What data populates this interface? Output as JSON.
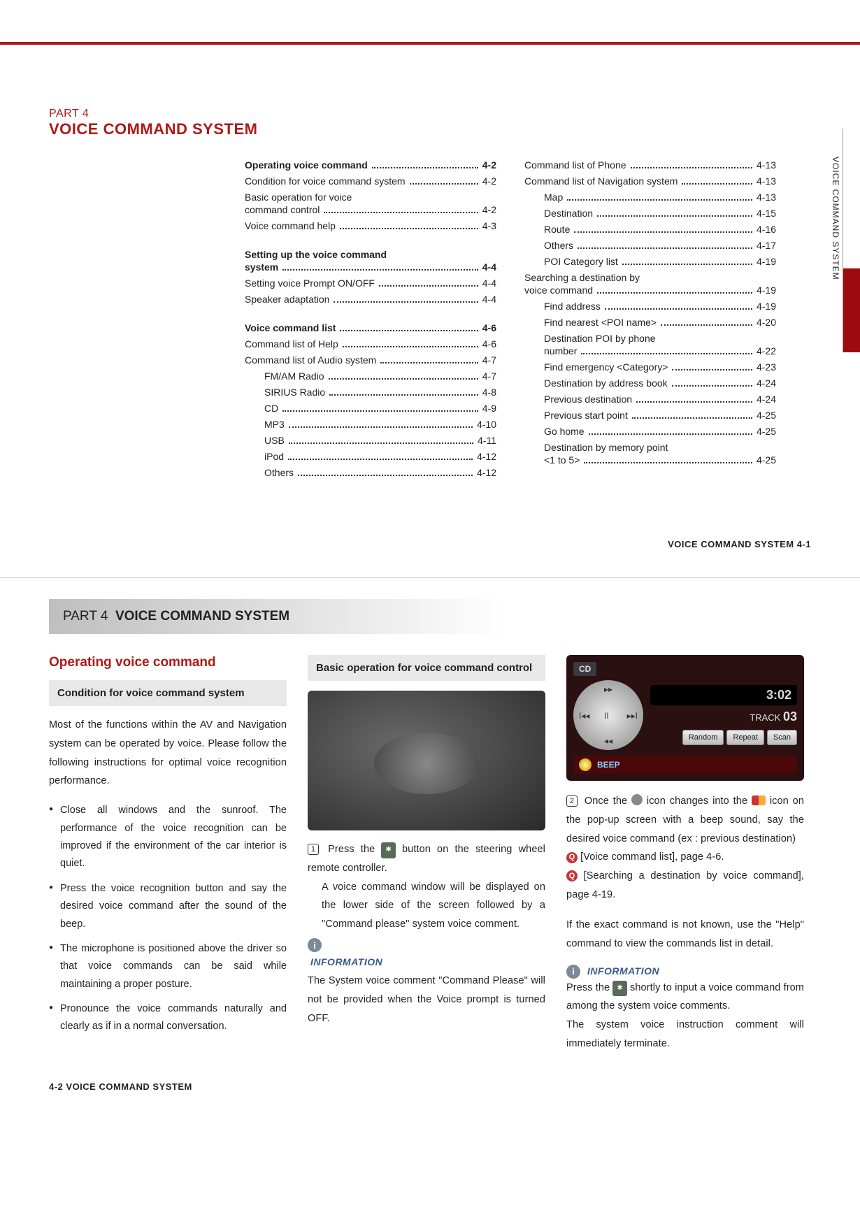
{
  "side_label": "VOICE COMMAND SYSTEM",
  "page1": {
    "part_label": "PART 4",
    "part_title": "VOICE COMMAND SYSTEM",
    "footer": "VOICE COMMAND SYSTEM    4-1"
  },
  "toc_left": [
    {
      "label": "Operating voice command",
      "page": "4-2",
      "bold": true
    },
    {
      "label": "Condition for voice command system",
      "page": "4-2"
    },
    {
      "label_line1": "Basic operation for voice",
      "label_line2": "command control",
      "page": "4-2"
    },
    {
      "label": "Voice command help",
      "page": "4-3"
    },
    {
      "gap": true
    },
    {
      "label_line1": "Setting up the voice command",
      "label_line2": "system",
      "page": "4-4",
      "bold": true
    },
    {
      "label": "Setting voice Prompt ON/OFF",
      "page": "4-4"
    },
    {
      "label": "Speaker adaptation",
      "page": "4-4"
    },
    {
      "gap": true
    },
    {
      "label": "Voice command list",
      "page": "4-6",
      "bold": true
    },
    {
      "label": "Command list of Help",
      "page": "4-6"
    },
    {
      "label": "Command list of Audio system",
      "page": "4-7"
    },
    {
      "label": "FM/AM Radio",
      "page": "4-7",
      "indent": 1
    },
    {
      "label": "SIRIUS Radio",
      "page": "4-8",
      "indent": 1
    },
    {
      "label": "CD",
      "page": "4-9",
      "indent": 1
    },
    {
      "label": "MP3",
      "page": "4-10",
      "indent": 1
    },
    {
      "label": "USB",
      "page": "4-11",
      "indent": 1
    },
    {
      "label": "iPod",
      "page": "4-12",
      "indent": 1
    },
    {
      "label": "Others",
      "page": "4-12",
      "indent": 1
    }
  ],
  "toc_right": [
    {
      "label": "Command list of Phone",
      "page": "4-13"
    },
    {
      "label": "Command list of Navigation system",
      "page": "4-13"
    },
    {
      "label": "Map",
      "page": "4-13",
      "indent": 1
    },
    {
      "label": "Destination",
      "page": "4-15",
      "indent": 1
    },
    {
      "label": "Route",
      "page": "4-16",
      "indent": 1
    },
    {
      "label": "Others",
      "page": "4-17",
      "indent": 1
    },
    {
      "label": "POI Category list",
      "page": "4-19",
      "indent": 1
    },
    {
      "label_line1": "Searching a destination by",
      "label_line2": "voice command",
      "page": "4-19"
    },
    {
      "label": "Find address",
      "page": "4-19",
      "indent": 1
    },
    {
      "label": "Find nearest <POI name>",
      "page": "4-20",
      "indent": 1
    },
    {
      "label_line1": "Destination POI by phone",
      "label_line2": "number",
      "page": "4-22",
      "indent": 1
    },
    {
      "label": "Find emergency <Category>",
      "page": "4-23",
      "indent": 1
    },
    {
      "label": "Destination by address book",
      "page": "4-24",
      "indent": 1
    },
    {
      "label": "Previous destination",
      "page": "4-24",
      "indent": 1
    },
    {
      "label": "Previous start point",
      "page": "4-25",
      "indent": 1
    },
    {
      "label": "Go home",
      "page": "4-25",
      "indent": 1
    },
    {
      "label_line1": "Destination by memory point",
      "label_line2": "<1 to 5>",
      "page": "4-25",
      "indent": 1
    }
  ],
  "page2": {
    "header_part": "PART 4",
    "header_title": "VOICE COMMAND SYSTEM",
    "footer": "4-2   VOICE COMMAND SYSTEM",
    "col1": {
      "h": "Operating voice command",
      "sub": "Condition for voice command system",
      "intro": "Most of the functions within the AV and Navigation system can be operated by voice. Please follow the following instructions for optimal voice recognition performance.",
      "bullets": [
        "Close all windows and the sunroof. The performance of the voice recognition can be improved if the environment of the car interior is quiet.",
        "Press the voice recognition button and say the desired voice command after the sound of the beep.",
        "The microphone is positioned above the driver so that voice commands can be said while maintaining a proper posture.",
        "Pronounce the voice commands naturally and clearly as if in a normal conversation."
      ]
    },
    "col2": {
      "sub": "Basic operation for voice command control",
      "step1_a": "Press the",
      "step1_b": "button on the steering wheel remote controller.",
      "para": "A voice command window will be displayed on the lower side of the screen followed by a \"Command please\" system voice comment.",
      "info_h": "INFORMATION",
      "info_body": "The System voice comment \"Command Please\" will not be provided when the Voice prompt is turned OFF."
    },
    "col3": {
      "cd_label": "CD",
      "time": "3:02",
      "track_label": "TRACK",
      "track_num": "03",
      "btns": [
        "Random",
        "Repeat",
        "Scan"
      ],
      "beep": "BEEP",
      "step2_a": "Once the",
      "step2_b": "icon changes into the",
      "step2_c": "icon on the pop-up screen with a beep sound, say the desired voice command (ex : previous destination)",
      "q1": "[Voice command list], page 4-6.",
      "q2": "[Searching a destination by voice command], page 4-19.",
      "para2": "If the exact command is not known, use the \"Help\" command to view the commands list in detail.",
      "info_h": "INFORMATION",
      "info_b1_a": "Press the",
      "info_b1_b": "shortly to input a voice command from among the system voice comments.",
      "info_b2": "The system voice instruction comment will immediately terminate."
    }
  }
}
